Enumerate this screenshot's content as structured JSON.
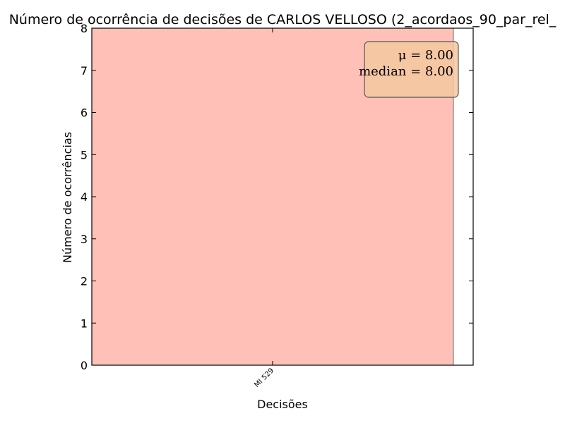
{
  "chart_data": {
    "type": "bar",
    "title": "Número de ocorrência de decisões de CARLOS VELLOSO (2_acordaos_90_par_rel_",
    "xlabel": "Decisões",
    "ylabel": "Número de ocorrências",
    "categories": [
      "MI 529"
    ],
    "values": [
      8
    ],
    "ylim": [
      0,
      8
    ],
    "yticks": [
      "0",
      "1",
      "2",
      "3",
      "4",
      "5",
      "6",
      "7",
      "8"
    ],
    "bar_color": "#ff9b8a",
    "annotation": {
      "mean_text": "μ = 8.00",
      "median_text": "median = 8.00",
      "box_color": "#f5c8a0",
      "placement": "top-right"
    },
    "grid": false
  }
}
